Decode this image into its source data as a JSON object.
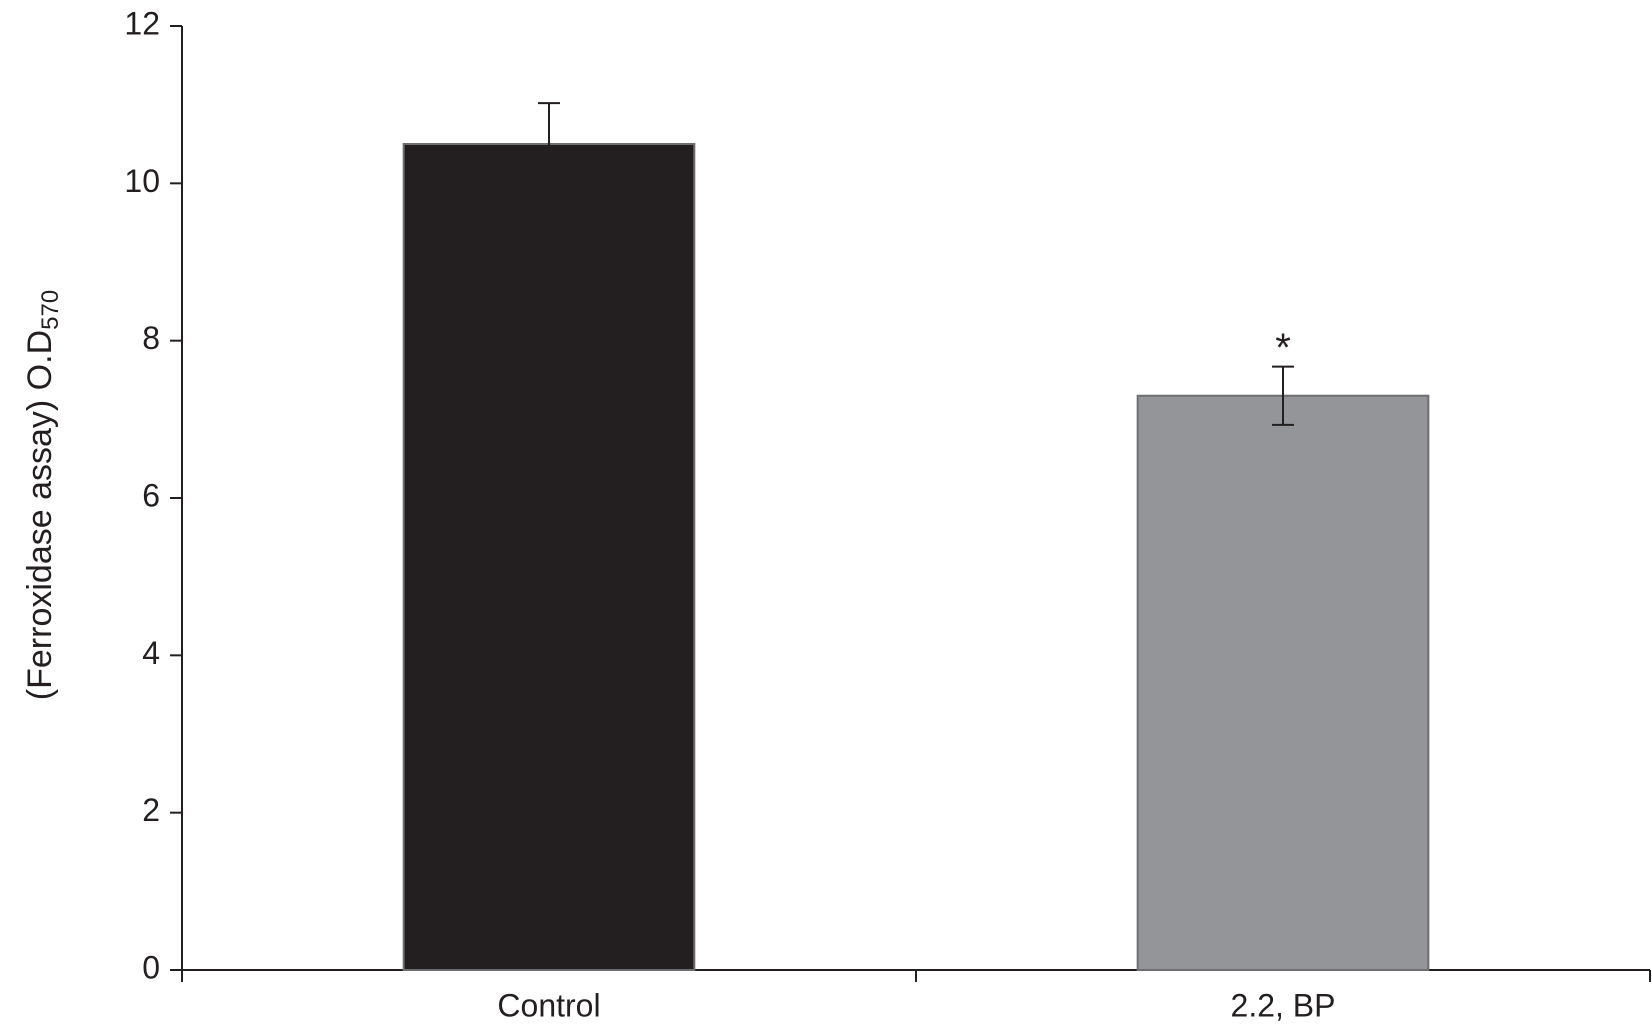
{
  "chart_data": {
    "type": "bar",
    "y_label": "(Ferroxidase assay) O.D",
    "y_label_subscript": "570",
    "categories": [
      "Control",
      "2.2, BP"
    ],
    "values": [
      10.5,
      7.3
    ],
    "errors": [
      0.52,
      0.37
    ],
    "colors": [
      "#231f20",
      "#939598"
    ],
    "annotations": [
      {
        "x": "2.2, BP",
        "text": "*"
      }
    ],
    "ylim": [
      0,
      12
    ],
    "yticks": [
      0,
      2,
      4,
      6,
      8,
      10,
      12
    ],
    "grid": false
  }
}
